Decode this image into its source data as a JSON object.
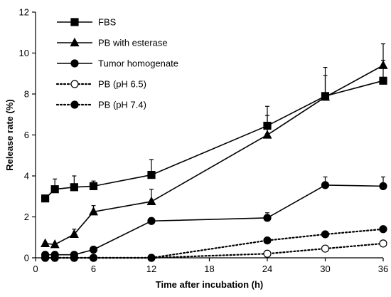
{
  "chart_data": {
    "type": "line",
    "title": "",
    "xlabel": "Time after incubation (h)",
    "ylabel": "Release rate (%)",
    "xlim": [
      0,
      36
    ],
    "ylim": [
      0,
      12
    ],
    "xticks": [
      0,
      6,
      12,
      18,
      24,
      30,
      36
    ],
    "yticks": [
      0,
      2,
      4,
      6,
      8,
      10,
      12
    ],
    "grid": false,
    "legend_position": "top-left",
    "series": [
      {
        "name": "FBS",
        "marker": "square",
        "marker_fill": "filled",
        "line_style": "solid",
        "x": [
          1,
          2,
          4,
          6,
          12,
          24,
          30,
          36
        ],
        "y": [
          2.9,
          3.35,
          3.45,
          3.5,
          4.05,
          6.45,
          7.9,
          8.65
        ],
        "error": [
          0.1,
          0.5,
          0.55,
          0.25,
          0.75,
          0.95,
          1.4,
          1.0
        ]
      },
      {
        "name": "PB with esterase",
        "marker": "triangle",
        "marker_fill": "filled",
        "line_style": "solid",
        "x": [
          1,
          2,
          4,
          6,
          12,
          24,
          30,
          36
        ],
        "y": [
          0.7,
          0.65,
          1.15,
          2.25,
          2.75,
          6.0,
          7.85,
          9.4
        ],
        "error": [
          0.05,
          0.05,
          0.25,
          0.3,
          0.6,
          0.95,
          1.05,
          1.05
        ]
      },
      {
        "name": "Tumor homogenate",
        "marker": "circle",
        "marker_fill": "filled",
        "line_style": "solid",
        "x": [
          1,
          2,
          4,
          6,
          12,
          24,
          30,
          36
        ],
        "y": [
          0.15,
          0.15,
          0.15,
          0.4,
          1.8,
          1.95,
          3.55,
          3.5
        ],
        "error": [
          0.05,
          0.05,
          0.05,
          0.1,
          0.15,
          0.25,
          0.4,
          0.45
        ]
      },
      {
        "name": "PB (pH 6.5)",
        "marker": "circle",
        "marker_fill": "open",
        "line_style": "dotted",
        "x": [
          1,
          2,
          4,
          6,
          12,
          24,
          30,
          36
        ],
        "y": [
          0.0,
          0.0,
          0.0,
          0.0,
          0.0,
          0.2,
          0.45,
          0.7
        ],
        "error": [
          0,
          0,
          0,
          0,
          0,
          0.05,
          0.05,
          0.1
        ]
      },
      {
        "name": "PB (pH 7.4)",
        "marker": "circle",
        "marker_fill": "filled",
        "line_style": "dotted",
        "x": [
          1,
          2,
          4,
          6,
          12,
          24,
          30,
          36
        ],
        "y": [
          0.0,
          0.0,
          0.0,
          0.0,
          0.0,
          0.85,
          1.15,
          1.4
        ],
        "error": [
          0,
          0,
          0,
          0,
          0,
          0.05,
          0.05,
          0.1
        ]
      }
    ],
    "colors": {
      "line": "#000000",
      "background": "#ffffff",
      "open_marker_fill": "#ffffff"
    }
  }
}
